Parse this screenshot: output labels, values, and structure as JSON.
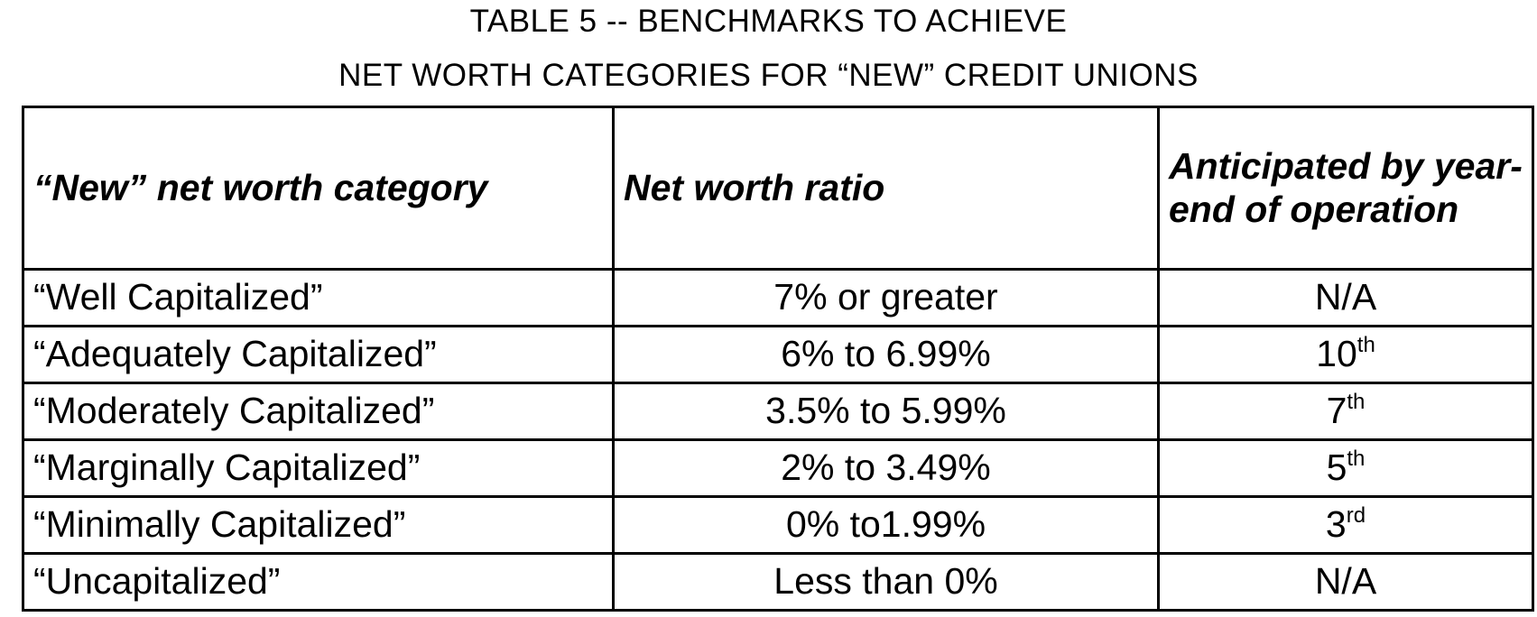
{
  "title": {
    "line1": "TABLE 5 --  BENCHMARKS TO ACHIEVE",
    "line2": "NET WORTH CATEGORIES FOR “NEW” CREDIT UNIONS"
  },
  "table": {
    "header": [
      "“New” net worth category",
      "Net worth ratio",
      "Anticipated by year-end of operation"
    ],
    "rows": [
      [
        "“Well Capitalized”",
        "7% or greater",
        "N/A"
      ],
      [
        "“Adequately Capitalized”",
        "6% to 6.99%",
        {
          "text": "10",
          "sup": "th"
        }
      ],
      [
        "“Moderately Capitalized”",
        "3.5% to 5.99%",
        {
          "text": "7",
          "sup": "th"
        }
      ],
      [
        "“Marginally Capitalized”",
        "2% to 3.49%",
        {
          "text": "5",
          "sup": "th"
        }
      ],
      [
        "“Minimally Capitalized”",
        "0% to1.99%",
        {
          "text": "3",
          "sup": "rd"
        }
      ],
      [
        "“Uncapitalized”",
        "Less than 0%",
        "N/A"
      ]
    ]
  }
}
